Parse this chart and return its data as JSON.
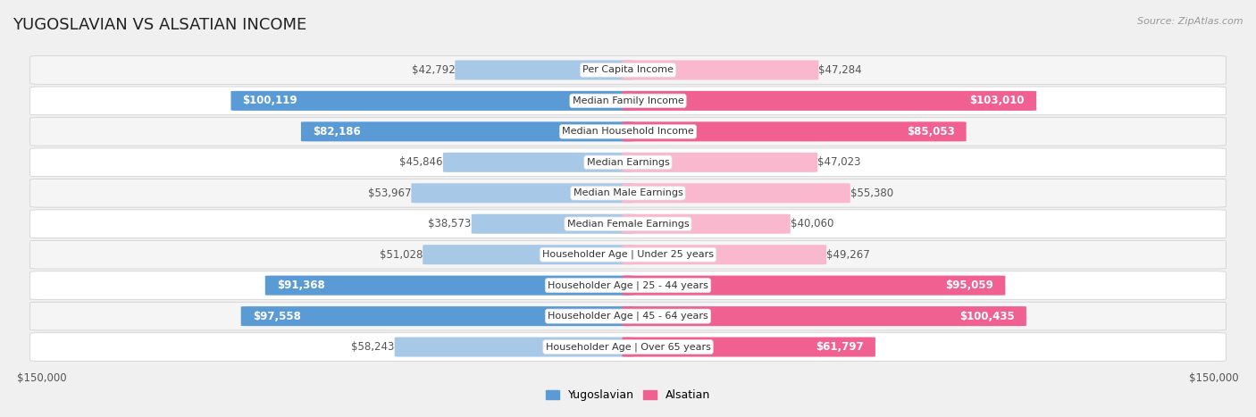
{
  "title": "YUGOSLAVIAN VS ALSATIAN INCOME",
  "source": "Source: ZipAtlas.com",
  "categories": [
    "Per Capita Income",
    "Median Family Income",
    "Median Household Income",
    "Median Earnings",
    "Median Male Earnings",
    "Median Female Earnings",
    "Householder Age | Under 25 years",
    "Householder Age | 25 - 44 years",
    "Householder Age | 45 - 64 years",
    "Householder Age | Over 65 years"
  ],
  "yugoslavian_values": [
    42792,
    100119,
    82186,
    45846,
    53967,
    38573,
    51028,
    91368,
    97558,
    58243
  ],
  "alsatian_values": [
    47284,
    103010,
    85053,
    47023,
    55380,
    40060,
    49267,
    95059,
    100435,
    61797
  ],
  "yugoslavian_labels": [
    "$42,792",
    "$100,119",
    "$82,186",
    "$45,846",
    "$53,967",
    "$38,573",
    "$51,028",
    "$91,368",
    "$97,558",
    "$58,243"
  ],
  "alsatian_labels": [
    "$47,284",
    "$103,010",
    "$85,053",
    "$47,023",
    "$55,380",
    "$40,060",
    "$49,267",
    "$95,059",
    "$100,435",
    "$61,797"
  ],
  "max_value": 150000,
  "yug_light": "#a8c8e8",
  "yug_dark": "#5b9bd5",
  "als_light": "#f9b8ce",
  "als_dark": "#f06090",
  "row_bg_even": "#f5f5f5",
  "row_bg_odd": "#ffffff",
  "row_border": "#cccccc",
  "background_color": "#f0f0f0",
  "label_inside_color": "#ffffff",
  "label_outside_color": "#555555",
  "label_fontsize": 8.5,
  "category_fontsize": 8.0,
  "title_fontsize": 13,
  "bar_height": 0.62,
  "inside_threshold": 60000,
  "ylim_label": "$150,000",
  "legend_yug": "Yugoslavian",
  "legend_als": "Alsatian"
}
